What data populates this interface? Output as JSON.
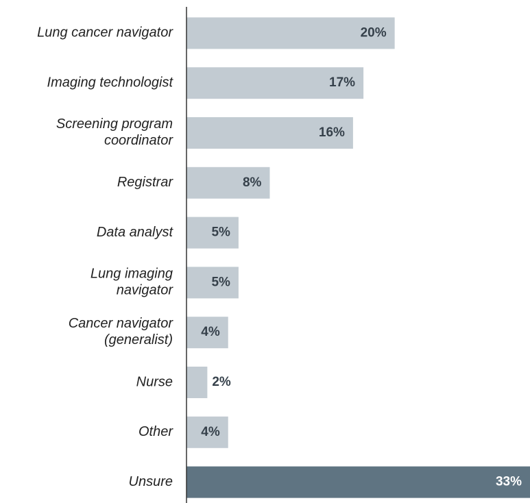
{
  "chart_data": {
    "type": "barh",
    "categories": [
      "Lung cancer navigator",
      "Imaging technologist",
      "Screening program coordinator",
      "Registrar",
      "Data analyst",
      "Lung imaging navigator",
      "Cancer navigator (generalist)",
      "Nurse",
      "Other",
      "Unsure"
    ],
    "values": [
      20,
      17,
      16,
      8,
      5,
      5,
      4,
      2,
      4,
      33
    ],
    "value_labels": [
      "20%",
      "17%",
      "16%",
      "8%",
      "5%",
      "5%",
      "4%",
      "2%",
      "4%",
      "33%"
    ],
    "colors": [
      "#c2cbd2",
      "#c2cbd2",
      "#c2cbd2",
      "#c2cbd2",
      "#c2cbd2",
      "#c2cbd2",
      "#c2cbd2",
      "#c2cbd2",
      "#c2cbd2",
      "#5f7482"
    ],
    "xlim": [
      0,
      33
    ]
  }
}
